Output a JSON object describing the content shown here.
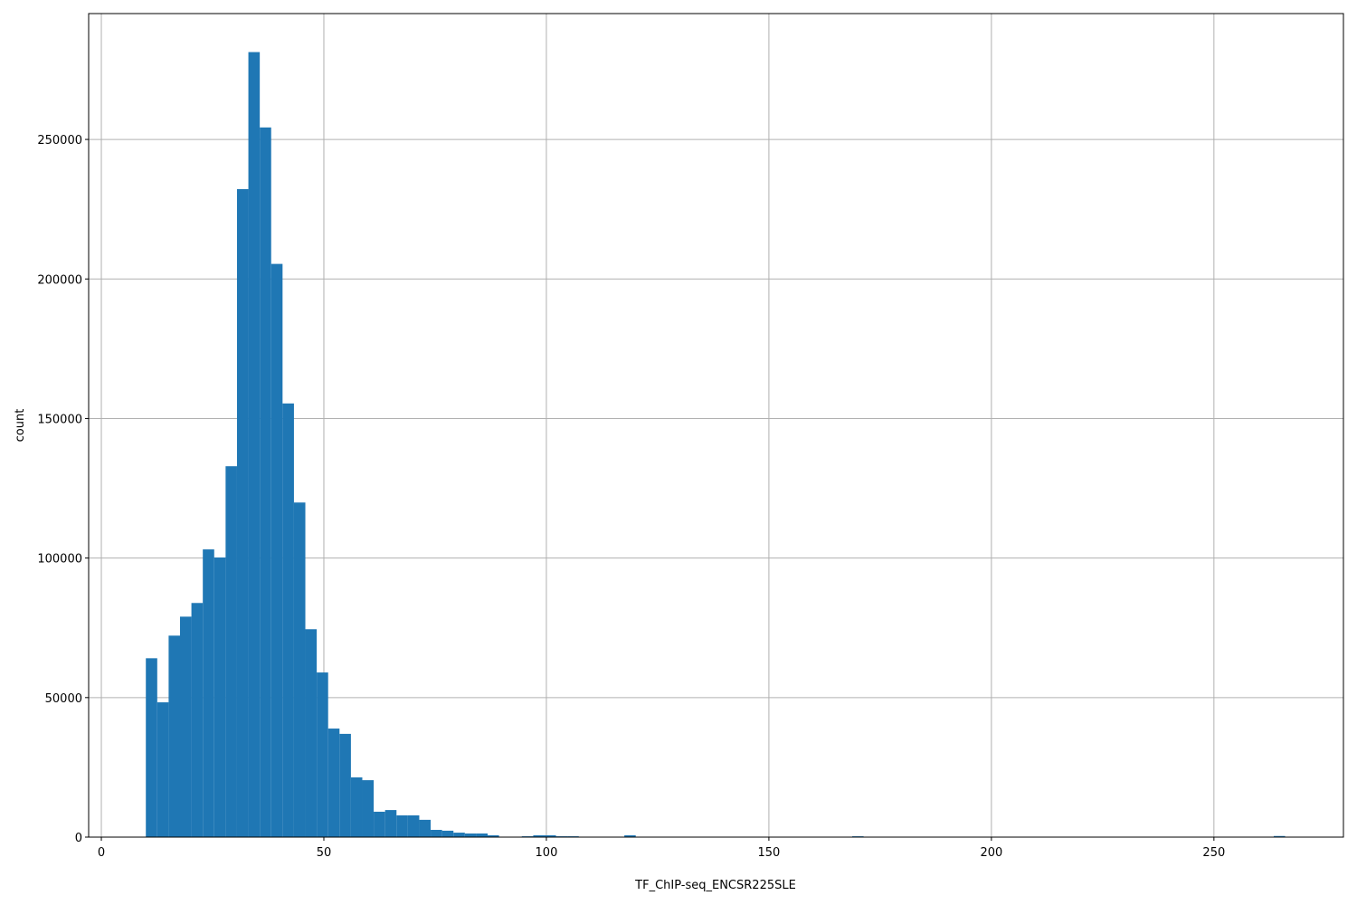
{
  "chart_data": {
    "type": "bar",
    "subtype": "histogram",
    "title": "",
    "xlabel": "TF_ChIP-seq_ENCSR225SLE",
    "ylabel": "count",
    "bins": {
      "start": 10,
      "end": 266,
      "count": 100
    },
    "values": [
      64100,
      48300,
      72200,
      79000,
      83900,
      103100,
      100200,
      132900,
      232200,
      281300,
      254300,
      205400,
      155400,
      119900,
      74500,
      59000,
      38900,
      37000,
      21400,
      20400,
      9100,
      9700,
      7800,
      7800,
      6200,
      2600,
      2300,
      1600,
      1300,
      1300,
      650,
      0,
      0,
      300,
      650,
      650,
      300,
      300,
      0,
      0,
      0,
      0,
      650,
      0,
      0,
      0,
      0,
      0,
      0,
      0,
      0,
      0,
      0,
      0,
      0,
      0,
      0,
      0,
      0,
      0,
      0,
      0,
      300,
      0,
      0,
      0,
      0,
      0,
      0,
      0,
      0,
      0,
      0,
      0,
      0,
      0,
      0,
      0,
      0,
      0,
      0,
      0,
      0,
      0,
      0,
      0,
      0,
      0,
      0,
      0,
      0,
      0,
      0,
      0,
      0,
      0,
      0,
      0,
      0,
      400
    ],
    "xlim": [
      -2.85,
      279.1
    ],
    "ylim": [
      0,
      295100
    ],
    "xticks": [
      "0",
      "50",
      "100",
      "150",
      "200",
      "250"
    ],
    "yticks": [
      "0",
      "50000",
      "100000",
      "150000",
      "200000",
      "250000"
    ],
    "grid": true,
    "bar_color": "#1f77b4",
    "grid_color": "#b0b0b0"
  }
}
